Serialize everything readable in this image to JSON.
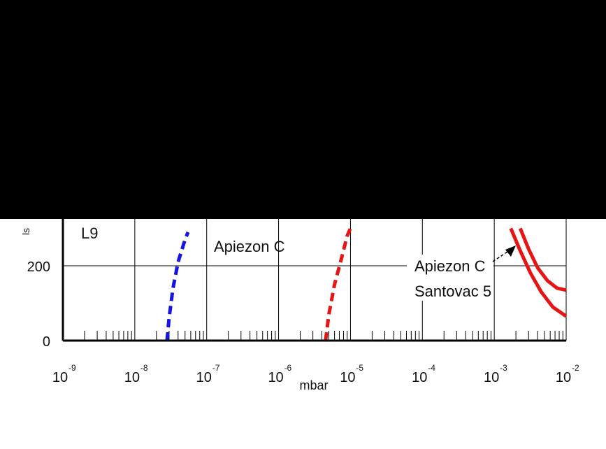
{
  "colors": {
    "blue_curve": "#1414e6",
    "red_curve": "#e61414",
    "axes": "#000000",
    "grid": "#000000",
    "redaction": "#000000"
  },
  "chart_data": {
    "type": "line",
    "xlabel": "mbar",
    "ylabel": "ls",
    "x_scale": "log",
    "xlim": [
      1e-09,
      0.01
    ],
    "ylim_visible": [
      0,
      280
    ],
    "grid": true,
    "x_ticks": [
      {
        "base": "10",
        "exp": "-9",
        "value": 1e-09
      },
      {
        "base": "10",
        "exp": "-8",
        "value": 1e-08
      },
      {
        "base": "10",
        "exp": "-7",
        "value": 1e-07
      },
      {
        "base": "10",
        "exp": "-6",
        "value": 1e-06
      },
      {
        "base": "10",
        "exp": "-5",
        "value": 1e-05
      },
      {
        "base": "10",
        "exp": "-4",
        "value": 0.0001
      },
      {
        "base": "10",
        "exp": "-3",
        "value": 0.001
      },
      {
        "base": "10",
        "exp": "-2",
        "value": 0.01
      }
    ],
    "y_ticks": [
      {
        "label": "0",
        "value": 0
      },
      {
        "label": "200",
        "value": 200
      }
    ],
    "annotations": [
      {
        "text": "L9"
      },
      {
        "text": "Apiezon C"
      },
      {
        "text": "Apiezon C"
      },
      {
        "text": "Santovac 5"
      }
    ],
    "series": [
      {
        "color": "blue",
        "style": "dashed",
        "points": [
          [
            2.8e-08,
            0
          ],
          [
            3e-08,
            60
          ],
          [
            3.4e-08,
            140
          ],
          [
            4e-08,
            210
          ],
          [
            5e-08,
            270
          ],
          [
            5.5e-08,
            290
          ]
        ]
      },
      {
        "color": "red",
        "style": "dashed",
        "points": [
          [
            4.5e-06,
            0
          ],
          [
            5e-06,
            70
          ],
          [
            6e-06,
            150
          ],
          [
            7.5e-06,
            220
          ],
          [
            9e-06,
            280
          ],
          [
            1e-05,
            300
          ]
        ]
      },
      {
        "color": "red",
        "style": "solid",
        "points": [
          [
            0.0023,
            300
          ],
          [
            0.003,
            245
          ],
          [
            0.004,
            195
          ],
          [
            0.0055,
            160
          ],
          [
            0.0075,
            140
          ],
          [
            0.01,
            135
          ]
        ]
      },
      {
        "color": "red",
        "style": "solid",
        "points": [
          [
            0.0017,
            300
          ],
          [
            0.0023,
            240
          ],
          [
            0.0032,
            180
          ],
          [
            0.0045,
            130
          ],
          [
            0.0065,
            90
          ],
          [
            0.01,
            65
          ]
        ]
      }
    ]
  }
}
